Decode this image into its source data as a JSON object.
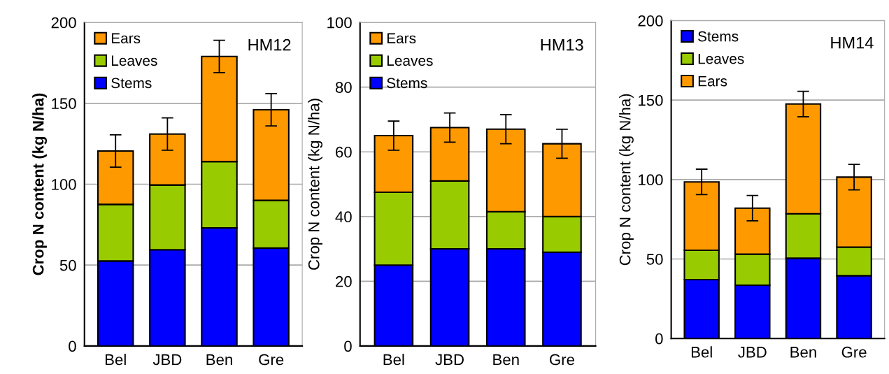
{
  "chart_data": [
    {
      "type": "bar",
      "stacked": true,
      "ylabel": "Crop N content (kg N/ha)",
      "annotations": [
        "HM12"
      ],
      "categories": [
        "Bel",
        "JBD",
        "Ben",
        "Gre"
      ],
      "ylim": [
        0,
        200
      ],
      "yticks": [
        0,
        50,
        100,
        150,
        200
      ],
      "grid": "y",
      "legend": "top left",
      "series": [
        {
          "name": "Stems",
          "color": "#0000ff",
          "values": [
            52.5,
            59.5,
            73,
            60.5
          ]
        },
        {
          "name": "Leaves",
          "color": "#99cc00",
          "values": [
            35,
            40,
            41,
            29.5
          ]
        },
        {
          "name": "Ears",
          "color": "#ff9900",
          "values": [
            33,
            31.5,
            65,
            56
          ],
          "errors": [
            10,
            10,
            10,
            10
          ]
        }
      ]
    },
    {
      "type": "bar",
      "stacked": true,
      "ylabel": "Crop N content (kg N/ha)",
      "annotations": [
        "HM13"
      ],
      "categories": [
        "Bel",
        "JBD",
        "Ben",
        "Gre"
      ],
      "ylim": [
        0,
        100
      ],
      "yticks": [
        0,
        20,
        40,
        60,
        80,
        100
      ],
      "grid": "y",
      "legend": "top left",
      "series": [
        {
          "name": "Stems",
          "color": "#0000ff",
          "values": [
            25,
            30,
            30,
            29
          ]
        },
        {
          "name": "Leaves",
          "color": "#99cc00",
          "values": [
            22.5,
            21,
            11.5,
            11
          ]
        },
        {
          "name": "Ears",
          "color": "#ff9900",
          "values": [
            17.5,
            16.5,
            25.5,
            22.5
          ],
          "errors": [
            4.5,
            4.5,
            4.5,
            4.5
          ]
        }
      ]
    },
    {
      "type": "bar",
      "stacked": true,
      "ylabel": "Crop N content (kg N/ha)",
      "annotations": [
        "HM14"
      ],
      "categories": [
        "Bel",
        "JBD",
        "Ben",
        "Gre"
      ],
      "ylim": [
        0,
        200
      ],
      "yticks": [
        0,
        50,
        100,
        150,
        200
      ],
      "grid": "y",
      "legend": "top left",
      "series": [
        {
          "name": "Stems",
          "color": "#0000ff",
          "values": [
            37,
            33.5,
            50.5,
            39.5
          ]
        },
        {
          "name": "Leaves",
          "color": "#99cc00",
          "values": [
            18.5,
            19.5,
            28,
            18
          ]
        },
        {
          "name": "Ears",
          "color": "#ff9900",
          "values": [
            43,
            29,
            69,
            44
          ],
          "errors": [
            8,
            8,
            8,
            8
          ]
        }
      ]
    }
  ]
}
